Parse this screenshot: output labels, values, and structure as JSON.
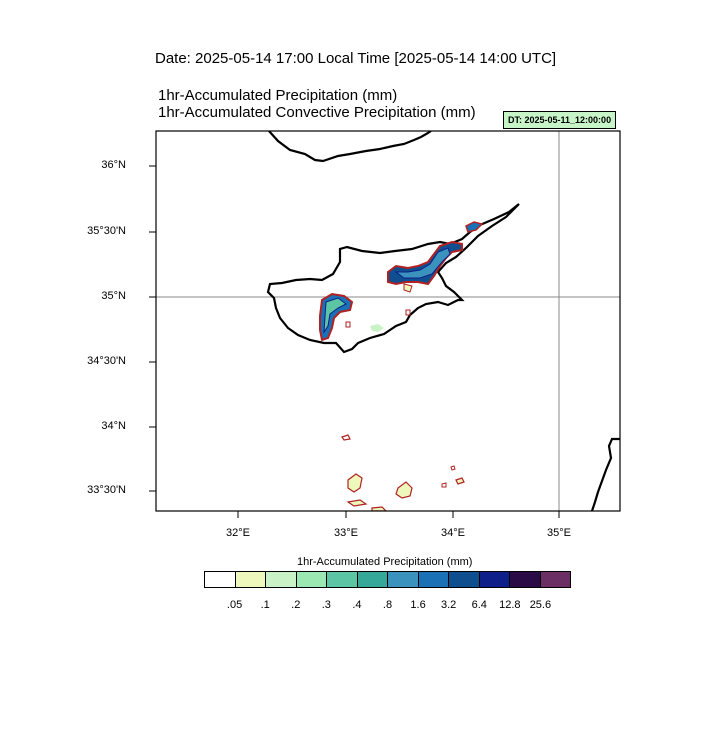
{
  "header": {
    "date_line": "Date: 2025-05-14  17:00 Local Time [2025-05-14  14:00 UTC]",
    "title_precip": "1hr-Accumulated Precipitation    (mm)",
    "title_convective": "1hr-Accumulated Convective Precipitation    (mm)",
    "dt_badge": "DT: 2025-05-11_12:00:00"
  },
  "map": {
    "lat_labels": [
      "36°N",
      "35°30'N",
      "35°N",
      "34°30'N",
      "34°N",
      "33°30'N"
    ],
    "lon_labels": [
      "32°E",
      "33°E",
      "34°E",
      "35°E"
    ]
  },
  "legend": {
    "title": "1hr-Accumulated Precipitation  (mm)",
    "colors": [
      "#ffffff",
      "#eef8bd",
      "#c9f3c6",
      "#9ce8b3",
      "#5cc5a3",
      "#35a89a",
      "#3b93bd",
      "#1b71b5",
      "#0f4f8f",
      "#0e1f8a",
      "#2a0b46",
      "#6b2f66"
    ],
    "ticks": [
      ".05",
      ".1",
      ".2",
      ".3",
      ".4",
      ".8",
      "1.6",
      "3.2",
      "6.4",
      "12.8",
      "25.6"
    ]
  }
}
